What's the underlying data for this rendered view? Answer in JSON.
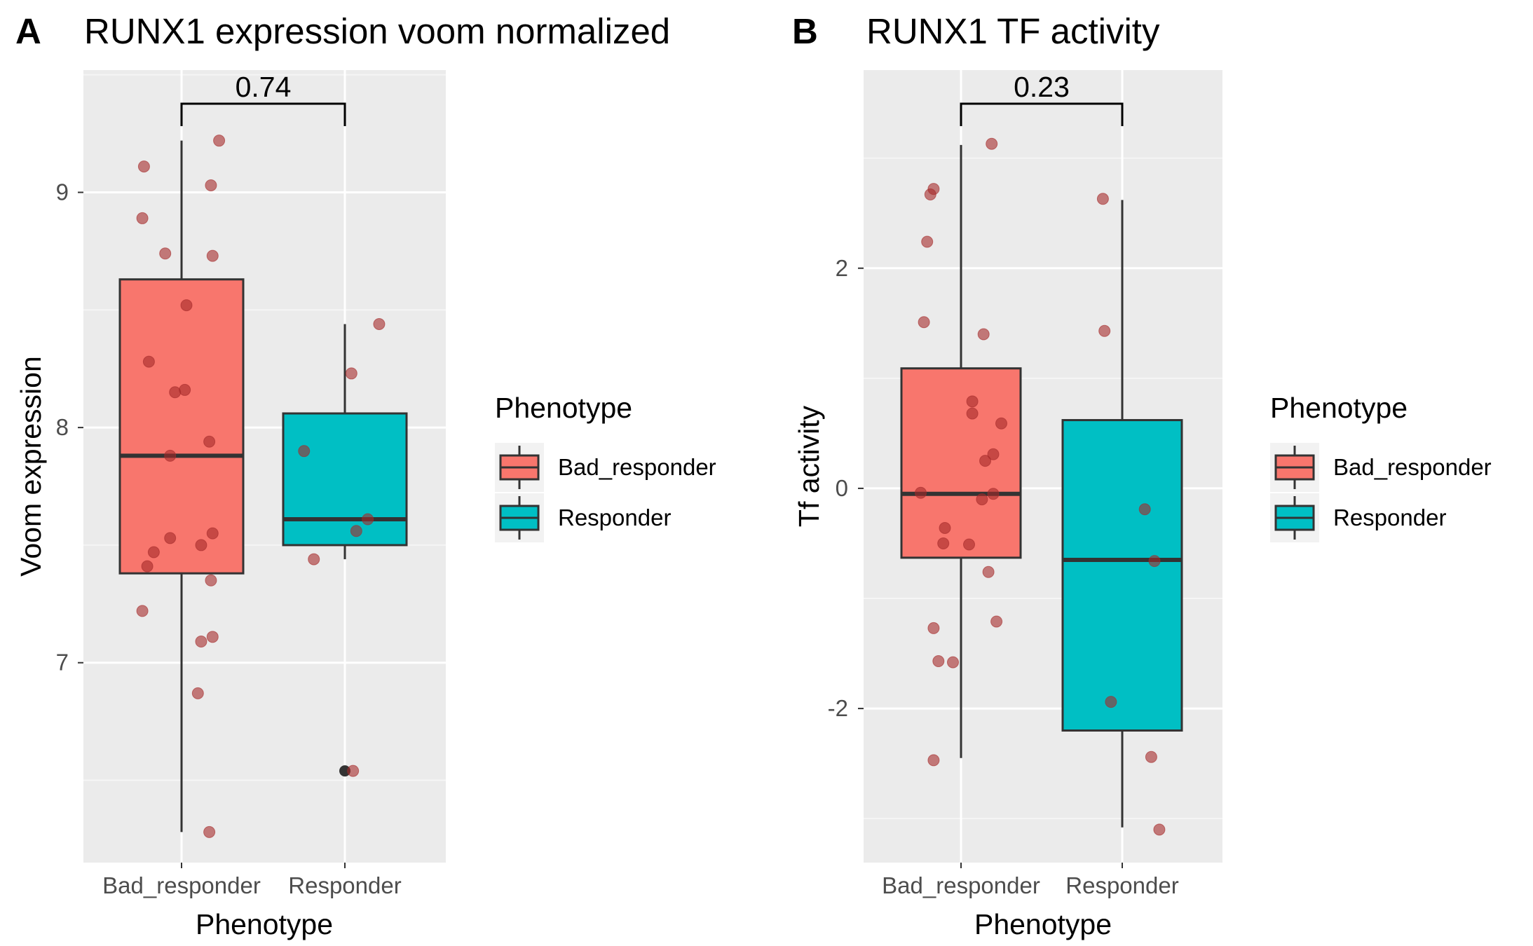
{
  "chart_data": [
    {
      "panel_letter": "A",
      "type": "box",
      "title": "RUNX1 expression voom normalized",
      "xlabel": "Phenotype",
      "ylabel": "Voom expression",
      "categories": [
        "Bad_responder",
        "Responder"
      ],
      "ylim": [
        6.15,
        9.52
      ],
      "yticks": [
        7,
        8,
        9
      ],
      "ytick_labels": [
        "7",
        "8",
        "9"
      ],
      "boxes": [
        {
          "category": "Bad_responder",
          "whisker_low": 6.28,
          "q1": 7.38,
          "median": 7.88,
          "q3": 8.63,
          "whisker_high": 9.22,
          "fill": "#F8766D",
          "outliers": []
        },
        {
          "category": "Responder",
          "whisker_low": 7.44,
          "q1": 7.5,
          "median": 7.61,
          "q3": 8.06,
          "whisker_high": 8.44,
          "fill": "#00BFC4",
          "outliers": [
            6.54
          ]
        }
      ],
      "points": [
        {
          "category": "Bad_responder",
          "jitter": -0.23,
          "y": 9.11
        },
        {
          "category": "Bad_responder",
          "jitter": 0.23,
          "y": 9.22
        },
        {
          "category": "Bad_responder",
          "jitter": 0.18,
          "y": 9.03
        },
        {
          "category": "Bad_responder",
          "jitter": -0.24,
          "y": 8.89
        },
        {
          "category": "Bad_responder",
          "jitter": -0.1,
          "y": 8.74
        },
        {
          "category": "Bad_responder",
          "jitter": 0.19,
          "y": 8.73
        },
        {
          "category": "Bad_responder",
          "jitter": 0.03,
          "y": 8.52
        },
        {
          "category": "Bad_responder",
          "jitter": -0.2,
          "y": 8.28
        },
        {
          "category": "Bad_responder",
          "jitter": -0.04,
          "y": 8.15
        },
        {
          "category": "Bad_responder",
          "jitter": 0.02,
          "y": 8.16
        },
        {
          "category": "Bad_responder",
          "jitter": 0.17,
          "y": 7.94
        },
        {
          "category": "Bad_responder",
          "jitter": -0.07,
          "y": 7.88
        },
        {
          "category": "Bad_responder",
          "jitter": -0.07,
          "y": 7.53
        },
        {
          "category": "Bad_responder",
          "jitter": 0.19,
          "y": 7.55
        },
        {
          "category": "Bad_responder",
          "jitter": 0.12,
          "y": 7.5
        },
        {
          "category": "Bad_responder",
          "jitter": -0.17,
          "y": 7.47
        },
        {
          "category": "Bad_responder",
          "jitter": -0.21,
          "y": 7.41
        },
        {
          "category": "Bad_responder",
          "jitter": 0.18,
          "y": 7.35
        },
        {
          "category": "Bad_responder",
          "jitter": -0.24,
          "y": 7.22
        },
        {
          "category": "Bad_responder",
          "jitter": 0.19,
          "y": 7.11
        },
        {
          "category": "Bad_responder",
          "jitter": 0.12,
          "y": 7.09
        },
        {
          "category": "Bad_responder",
          "jitter": 0.1,
          "y": 6.87
        },
        {
          "category": "Bad_responder",
          "jitter": 0.17,
          "y": 6.28
        },
        {
          "category": "Responder",
          "jitter": 0.21,
          "y": 8.44
        },
        {
          "category": "Responder",
          "jitter": 0.04,
          "y": 8.23
        },
        {
          "category": "Responder",
          "jitter": -0.25,
          "y": 7.9
        },
        {
          "category": "Responder",
          "jitter": 0.14,
          "y": 7.61
        },
        {
          "category": "Responder",
          "jitter": 0.07,
          "y": 7.56
        },
        {
          "category": "Responder",
          "jitter": -0.19,
          "y": 7.44
        },
        {
          "category": "Responder",
          "jitter": 0.05,
          "y": 6.54
        }
      ],
      "comparison": {
        "label": "0.74",
        "groups": [
          "Bad_responder",
          "Responder"
        ]
      }
    },
    {
      "panel_letter": "B",
      "type": "box",
      "title": "RUNX1 TF activity",
      "xlabel": "Phenotype",
      "ylabel": "Tf activity",
      "categories": [
        "Bad_responder",
        "Responder"
      ],
      "ylim": [
        -3.4,
        3.8
      ],
      "yticks": [
        -2,
        0,
        2
      ],
      "ytick_labels": [
        "-2",
        "0",
        "2"
      ],
      "boxes": [
        {
          "category": "Bad_responder",
          "whisker_low": -2.45,
          "q1": -0.63,
          "median": -0.05,
          "q3": 1.09,
          "whisker_high": 3.12,
          "fill": "#F8766D",
          "outliers": []
        },
        {
          "category": "Responder",
          "whisker_low": -3.08,
          "q1": -2.2,
          "median": -0.65,
          "q3": 0.62,
          "whisker_high": 2.62,
          "fill": "#00BFC4",
          "outliers": []
        }
      ],
      "points": [
        {
          "category": "Bad_responder",
          "jitter": 0.19,
          "y": 3.13
        },
        {
          "category": "Bad_responder",
          "jitter": -0.17,
          "y": 2.72
        },
        {
          "category": "Bad_responder",
          "jitter": -0.19,
          "y": 2.67
        },
        {
          "category": "Bad_responder",
          "jitter": -0.21,
          "y": 2.24
        },
        {
          "category": "Bad_responder",
          "jitter": -0.23,
          "y": 1.51
        },
        {
          "category": "Bad_responder",
          "jitter": 0.14,
          "y": 1.4
        },
        {
          "category": "Bad_responder",
          "jitter": 0.07,
          "y": 0.79
        },
        {
          "category": "Bad_responder",
          "jitter": 0.07,
          "y": 0.68
        },
        {
          "category": "Bad_responder",
          "jitter": 0.25,
          "y": 0.59
        },
        {
          "category": "Bad_responder",
          "jitter": 0.2,
          "y": 0.31
        },
        {
          "category": "Bad_responder",
          "jitter": 0.15,
          "y": 0.25
        },
        {
          "category": "Bad_responder",
          "jitter": -0.25,
          "y": -0.04
        },
        {
          "category": "Bad_responder",
          "jitter": 0.2,
          "y": -0.05
        },
        {
          "category": "Bad_responder",
          "jitter": 0.13,
          "y": -0.1
        },
        {
          "category": "Bad_responder",
          "jitter": -0.1,
          "y": -0.36
        },
        {
          "category": "Bad_responder",
          "jitter": -0.11,
          "y": -0.5
        },
        {
          "category": "Bad_responder",
          "jitter": 0.05,
          "y": -0.51
        },
        {
          "category": "Bad_responder",
          "jitter": 0.17,
          "y": -0.76
        },
        {
          "category": "Bad_responder",
          "jitter": 0.22,
          "y": -1.21
        },
        {
          "category": "Bad_responder",
          "jitter": -0.17,
          "y": -1.27
        },
        {
          "category": "Bad_responder",
          "jitter": -0.14,
          "y": -1.57
        },
        {
          "category": "Bad_responder",
          "jitter": -0.05,
          "y": -1.58
        },
        {
          "category": "Bad_responder",
          "jitter": -0.17,
          "y": -2.47
        },
        {
          "category": "Responder",
          "jitter": -0.12,
          "y": 2.63
        },
        {
          "category": "Responder",
          "jitter": -0.11,
          "y": 1.43
        },
        {
          "category": "Responder",
          "jitter": 0.14,
          "y": -0.19
        },
        {
          "category": "Responder",
          "jitter": 0.2,
          "y": -0.66
        },
        {
          "category": "Responder",
          "jitter": -0.07,
          "y": -1.94
        },
        {
          "category": "Responder",
          "jitter": 0.18,
          "y": -2.44
        },
        {
          "category": "Responder",
          "jitter": 0.23,
          "y": -3.1
        }
      ],
      "comparison": {
        "label": "0.23",
        "groups": [
          "Bad_responder",
          "Responder"
        ]
      }
    }
  ],
  "legend": {
    "title": "Phenotype",
    "entries": [
      {
        "label": "Bad_responder",
        "fill": "#F8766D"
      },
      {
        "label": "Responder",
        "fill": "#00BFC4"
      }
    ]
  },
  "style": {
    "panel_bg": "#EBEBEB",
    "grid_major": "#FFFFFF",
    "grid_minor": "#F5F5F5",
    "box_stroke": "#333333",
    "point_fill": "#A52A2A",
    "outlier_fill": "#333333"
  }
}
